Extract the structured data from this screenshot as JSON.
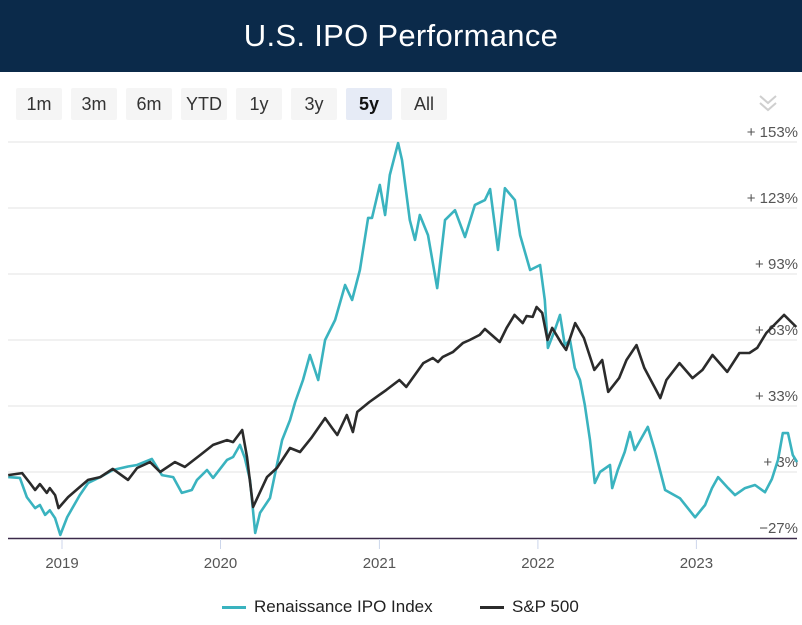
{
  "header": {
    "title": "U.S. IPO Performance"
  },
  "range_buttons": [
    {
      "label": "1m",
      "selected": false
    },
    {
      "label": "3m",
      "selected": false
    },
    {
      "label": "6m",
      "selected": false
    },
    {
      "label": "YTD",
      "selected": false
    },
    {
      "label": "1y",
      "selected": false
    },
    {
      "label": "3y",
      "selected": false
    },
    {
      "label": "5y",
      "selected": true
    },
    {
      "label": "All",
      "selected": false
    }
  ],
  "menu_icon": "double-chevron-down-icon",
  "chart_data": {
    "type": "line",
    "title": "",
    "xlabel": "",
    "ylabel": "",
    "xlim": [
      "2018-08-27",
      "2023-08-24"
    ],
    "ylim": [
      -27,
      153
    ],
    "y_ticks": [
      153,
      123,
      93,
      63,
      33,
      3,
      -27
    ],
    "y_tick_labels": [
      "+ 153%",
      "+ 123%",
      "+ 93%",
      "+ 63%",
      "+ 33%",
      "+ 3%",
      "−27%"
    ],
    "x_ticks": [
      "2019-01-01",
      "2020-01-01",
      "2021-01-01",
      "2022-01-01",
      "2023-01-01"
    ],
    "x_tick_labels": [
      "2019",
      "2020",
      "2021",
      "2022",
      "2023"
    ],
    "grid": true,
    "legend_position": "bottom",
    "series": [
      {
        "name": "Renaissance IPO Index",
        "color": "#3ab3bf",
        "points": [
          [
            "2018-08-30",
            0.7
          ],
          [
            "2018-09-26",
            0.3
          ],
          [
            "2018-10-12",
            -8.4
          ],
          [
            "2018-10-31",
            -13.4
          ],
          [
            "2018-11-11",
            -12
          ],
          [
            "2018-11-23",
            -16.5
          ],
          [
            "2018-12-04",
            -14.4
          ],
          [
            "2018-12-16",
            -18
          ],
          [
            "2018-12-28",
            -25.6
          ],
          [
            "2019-01-13",
            -17.5
          ],
          [
            "2019-02-11",
            -7.5
          ],
          [
            "2019-03-02",
            -2
          ],
          [
            "2019-03-30",
            0.7
          ],
          [
            "2019-04-28",
            3.9
          ],
          [
            "2019-06-02",
            5.5
          ],
          [
            "2019-06-23",
            6.2
          ],
          [
            "2019-07-27",
            8.9
          ],
          [
            "2019-08-19",
            1.6
          ],
          [
            "2019-09-14",
            0.7
          ],
          [
            "2019-10-04",
            -6.5
          ],
          [
            "2019-10-27",
            -5.2
          ],
          [
            "2019-11-08",
            -0.6
          ],
          [
            "2019-12-01",
            3.9
          ],
          [
            "2019-12-15",
            0.3
          ],
          [
            "2020-01-16",
            8.5
          ],
          [
            "2020-01-30",
            9.8
          ],
          [
            "2020-02-15",
            15.3
          ],
          [
            "2020-02-26",
            9.4
          ],
          [
            "2020-03-09",
            -0.6
          ],
          [
            "2020-03-21",
            -24.7
          ],
          [
            "2020-04-01",
            -15.6
          ],
          [
            "2020-04-24",
            -8.8
          ],
          [
            "2020-05-22",
            17.5
          ],
          [
            "2020-06-09",
            26.6
          ],
          [
            "2020-06-21",
            34.8
          ],
          [
            "2020-07-09",
            44.8
          ],
          [
            "2020-07-25",
            56.2
          ],
          [
            "2020-08-13",
            44.8
          ],
          [
            "2020-08-29",
            63
          ],
          [
            "2020-09-21",
            72.1
          ],
          [
            "2020-10-14",
            88
          ],
          [
            "2020-10-30",
            81.2
          ],
          [
            "2020-11-17",
            94.8
          ],
          [
            "2020-12-06",
            118.5
          ],
          [
            "2020-12-15",
            118.5
          ],
          [
            "2021-01-02",
            133.5
          ],
          [
            "2021-01-14",
            119.8
          ],
          [
            "2021-01-25",
            138
          ],
          [
            "2021-02-13",
            152.5
          ],
          [
            "2021-02-22",
            144.8
          ],
          [
            "2021-03-12",
            117.5
          ],
          [
            "2021-03-24",
            108.5
          ],
          [
            "2021-04-04",
            119.8
          ],
          [
            "2021-04-23",
            110.7
          ],
          [
            "2021-05-14",
            86.6
          ],
          [
            "2021-06-01",
            117.5
          ],
          [
            "2021-06-24",
            122
          ],
          [
            "2021-07-17",
            109.8
          ],
          [
            "2021-08-09",
            124.4
          ],
          [
            "2021-09-01",
            126.6
          ],
          [
            "2021-09-13",
            131.6
          ],
          [
            "2021-10-01",
            103.9
          ],
          [
            "2021-10-17",
            132
          ],
          [
            "2021-11-09",
            126.6
          ],
          [
            "2021-11-21",
            110.7
          ],
          [
            "2021-12-14",
            94.8
          ],
          [
            "2022-01-06",
            97.1
          ],
          [
            "2022-01-17",
            81.2
          ],
          [
            "2022-01-24",
            59.4
          ],
          [
            "2022-02-09",
            67.5
          ],
          [
            "2022-02-21",
            74.4
          ],
          [
            "2022-03-04",
            60.7
          ],
          [
            "2022-03-16",
            63
          ],
          [
            "2022-03-27",
            50.3
          ],
          [
            "2022-04-08",
            44.8
          ],
          [
            "2022-04-19",
            33.5
          ],
          [
            "2022-05-01",
            17.5
          ],
          [
            "2022-05-12",
            -2
          ],
          [
            "2022-05-24",
            3
          ],
          [
            "2022-06-16",
            6.2
          ],
          [
            "2022-06-21",
            -4.3
          ],
          [
            "2022-07-04",
            3.9
          ],
          [
            "2022-07-20",
            12.1
          ],
          [
            "2022-08-01",
            21.2
          ],
          [
            "2022-08-12",
            13
          ],
          [
            "2022-09-11",
            23.5
          ],
          [
            "2022-09-27",
            13
          ],
          [
            "2022-10-09",
            3.9
          ],
          [
            "2022-10-21",
            -5.2
          ],
          [
            "2022-11-24",
            -8.9
          ],
          [
            "2022-12-29",
            -17.6
          ],
          [
            "2023-01-21",
            -12
          ],
          [
            "2023-02-06",
            -4.3
          ],
          [
            "2023-02-20",
            0.7
          ],
          [
            "2023-03-15",
            -4.3
          ],
          [
            "2023-03-31",
            -7.5
          ],
          [
            "2023-04-23",
            -4.3
          ],
          [
            "2023-05-16",
            -2.9
          ],
          [
            "2023-06-08",
            -6.2
          ],
          [
            "2023-06-24",
            -0.2
          ],
          [
            "2023-07-08",
            8.5
          ],
          [
            "2023-07-19",
            20.7
          ],
          [
            "2023-07-31",
            20.7
          ],
          [
            "2023-08-11",
            10.7
          ],
          [
            "2023-08-21",
            7.5
          ]
        ]
      },
      {
        "name": "S&P 500",
        "color": "#2b2b2b",
        "points": [
          [
            "2018-08-30",
            1.6
          ],
          [
            "2018-10-01",
            2.5
          ],
          [
            "2018-10-19",
            -2
          ],
          [
            "2018-10-31",
            -5.2
          ],
          [
            "2018-11-11",
            -2.5
          ],
          [
            "2018-11-27",
            -6.5
          ],
          [
            "2018-12-04",
            -4.3
          ],
          [
            "2018-12-16",
            -7.5
          ],
          [
            "2018-12-24",
            -13.4
          ],
          [
            "2019-01-15",
            -8.4
          ],
          [
            "2019-02-11",
            -3.8
          ],
          [
            "2019-03-02",
            -0.6
          ],
          [
            "2019-03-30",
            0.7
          ],
          [
            "2019-04-28",
            4.4
          ],
          [
            "2019-06-02",
            -0.6
          ],
          [
            "2019-06-23",
            4.8
          ],
          [
            "2019-07-23",
            7.5
          ],
          [
            "2019-08-15",
            3
          ],
          [
            "2019-09-18",
            7.5
          ],
          [
            "2019-10-11",
            5.3
          ],
          [
            "2019-11-15",
            10.7
          ],
          [
            "2019-12-15",
            15.3
          ],
          [
            "2020-01-16",
            17.5
          ],
          [
            "2020-01-30",
            16.6
          ],
          [
            "2020-02-20",
            22.1
          ],
          [
            "2020-03-02",
            9.8
          ],
          [
            "2020-03-16",
            -12.9
          ],
          [
            "2020-04-17",
            0.7
          ],
          [
            "2020-05-10",
            4.8
          ],
          [
            "2020-06-09",
            13.9
          ],
          [
            "2020-07-02",
            12.1
          ],
          [
            "2020-07-28",
            18.4
          ],
          [
            "2020-08-29",
            27.5
          ],
          [
            "2020-09-14",
            23
          ],
          [
            "2020-09-26",
            19.8
          ],
          [
            "2020-10-18",
            28.9
          ],
          [
            "2020-11-01",
            21.2
          ],
          [
            "2020-11-11",
            30.3
          ],
          [
            "2020-12-09",
            34.8
          ],
          [
            "2021-01-17",
            40.3
          ],
          [
            "2021-02-16",
            44.8
          ],
          [
            "2021-03-04",
            41.7
          ],
          [
            "2021-04-12",
            52.5
          ],
          [
            "2021-05-04",
            54.8
          ],
          [
            "2021-05-16",
            53
          ],
          [
            "2021-05-27",
            55.3
          ],
          [
            "2021-06-19",
            57.5
          ],
          [
            "2021-07-12",
            61.6
          ],
          [
            "2021-07-28",
            63
          ],
          [
            "2021-08-20",
            65.3
          ],
          [
            "2021-09-01",
            68
          ],
          [
            "2021-10-05",
            62.1
          ],
          [
            "2021-10-21",
            68.5
          ],
          [
            "2021-11-08",
            74.4
          ],
          [
            "2021-11-27",
            70.7
          ],
          [
            "2021-12-06",
            73.9
          ],
          [
            "2021-12-20",
            73.5
          ],
          [
            "2021-12-29",
            78
          ],
          [
            "2022-01-11",
            75.3
          ],
          [
            "2022-01-23",
            63
          ],
          [
            "2022-02-03",
            68.5
          ],
          [
            "2022-02-24",
            61.6
          ],
          [
            "2022-03-07",
            58.5
          ],
          [
            "2022-03-28",
            70.7
          ],
          [
            "2022-04-17",
            63.9
          ],
          [
            "2022-05-11",
            49.4
          ],
          [
            "2022-05-29",
            53.9
          ],
          [
            "2022-06-12",
            39.4
          ],
          [
            "2022-07-07",
            45.7
          ],
          [
            "2022-07-24",
            53.9
          ],
          [
            "2022-08-16",
            60.7
          ],
          [
            "2022-09-03",
            50.3
          ],
          [
            "2022-09-30",
            40.3
          ],
          [
            "2022-10-10",
            36.6
          ],
          [
            "2022-10-24",
            44.8
          ],
          [
            "2022-11-23",
            52.5
          ],
          [
            "2022-12-23",
            45.7
          ],
          [
            "2023-01-15",
            49.4
          ],
          [
            "2023-02-07",
            56.2
          ],
          [
            "2023-03-13",
            48.5
          ],
          [
            "2023-04-10",
            57.1
          ],
          [
            "2023-05-03",
            57.1
          ],
          [
            "2023-05-21",
            59.4
          ],
          [
            "2023-06-11",
            66.2
          ],
          [
            "2023-07-22",
            74.4
          ],
          [
            "2023-08-19",
            68.9
          ]
        ]
      }
    ]
  }
}
